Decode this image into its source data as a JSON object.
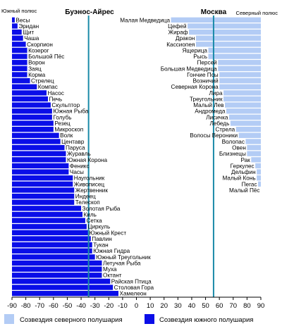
{
  "colors": {
    "north": "#b3ccf5",
    "south": "#0a0ee8",
    "ref_line": "#1a8aa8",
    "axis": "#000000",
    "text": "#000000"
  },
  "labels": {
    "south_pole": "Южный полюс",
    "north_pole": "Северный полюс",
    "buenos_aires": "Буэнос-Айрес",
    "moscow": "Москва"
  },
  "legend": {
    "north": "Созвездия северного полушария",
    "south": "Созвездия южного полушария"
  },
  "chart_data": {
    "type": "bar",
    "orientation": "horizontal",
    "x_ticks": [
      -90,
      -80,
      -70,
      -60,
      -50,
      -40,
      -30,
      -20,
      -10,
      0,
      10,
      20,
      30,
      40,
      50,
      60,
      70,
      80,
      90
    ],
    "xlim": [
      -90,
      90
    ],
    "reference_lines": [
      {
        "label": "Буэнос-Айрес",
        "x": -34.6
      },
      {
        "label": "Москва",
        "x": 55.8
      }
    ],
    "south_bars": [
      {
        "name": "Весы",
        "value": -88
      },
      {
        "name": "Эридан",
        "value": -86
      },
      {
        "name": "Щит",
        "value": -83
      },
      {
        "name": "Чаша",
        "value": -82
      },
      {
        "name": "Скорпион",
        "value": -80
      },
      {
        "name": "Козерог",
        "value": -79
      },
      {
        "name": "Большой Пёс",
        "value": -79
      },
      {
        "name": "Ворон",
        "value": -79
      },
      {
        "name": "Заяц",
        "value": -79
      },
      {
        "name": "Корма",
        "value": -79
      },
      {
        "name": "Стрелец",
        "value": -77
      },
      {
        "name": "Компас",
        "value": -72
      },
      {
        "name": "Насос",
        "value": -65
      },
      {
        "name": "Печь",
        "value": -64
      },
      {
        "name": "Скульптор",
        "value": -62
      },
      {
        "name": "Южная Рыба",
        "value": -61
      },
      {
        "name": "Голубь",
        "value": -61
      },
      {
        "name": "Резец",
        "value": -60
      },
      {
        "name": "Микроскоп",
        "value": -60
      },
      {
        "name": "Волк",
        "value": -56
      },
      {
        "name": "Центавр",
        "value": -55
      },
      {
        "name": "Паруса",
        "value": -52
      },
      {
        "name": "Журавль",
        "value": -51
      },
      {
        "name": "Южная Корона",
        "value": -51
      },
      {
        "name": "Феникс",
        "value": -49
      },
      {
        "name": "Часы",
        "value": -49
      },
      {
        "name": "Наугольник",
        "value": -46
      },
      {
        "name": "Живописец",
        "value": -46
      },
      {
        "name": "Жертвенник",
        "value": -45
      },
      {
        "name": "Индеец",
        "value": -45
      },
      {
        "name": "Телескоп",
        "value": -45
      },
      {
        "name": "Золотая Рыба",
        "value": -40
      },
      {
        "name": "Киль",
        "value": -39
      },
      {
        "name": "Сетка",
        "value": -37
      },
      {
        "name": "Циркуль",
        "value": -36
      },
      {
        "name": "Южный Крест",
        "value": -35
      },
      {
        "name": "Павлин",
        "value": -33
      },
      {
        "name": "Тукан",
        "value": -32
      },
      {
        "name": "Южная Гидра",
        "value": -32
      },
      {
        "name": "Южный Треугольник",
        "value": -30
      },
      {
        "name": "Летучая Рыба",
        "value": -25
      },
      {
        "name": "Муха",
        "value": -25
      },
      {
        "name": "Октант",
        "value": -25
      },
      {
        "name": "Райская Птица",
        "value": -19
      },
      {
        "name": "Столовая Гора",
        "value": -17
      },
      {
        "name": "Хамелеон",
        "value": -13
      }
    ],
    "north_bars": [
      {
        "name": "Малая Медведица",
        "value": 25
      },
      {
        "name": "Цефей",
        "value": 37
      },
      {
        "name": "Жираф",
        "value": 38
      },
      {
        "name": "Дракон",
        "value": 43
      },
      {
        "name": "Кассиопея",
        "value": 43
      },
      {
        "name": "Ящерица",
        "value": 52
      },
      {
        "name": "Рысь",
        "value": 52
      },
      {
        "name": "Персей",
        "value": 59
      },
      {
        "name": "Большая Медведица",
        "value": 59
      },
      {
        "name": "Гончие Псы",
        "value": 60
      },
      {
        "name": "Возничий",
        "value": 60
      },
      {
        "name": "Северная Корона",
        "value": 60
      },
      {
        "name": "Лира",
        "value": 63
      },
      {
        "name": "Треугольник",
        "value": 63
      },
      {
        "name": "Малый Лев",
        "value": 64
      },
      {
        "name": "Андромеда",
        "value": 65
      },
      {
        "name": "Лисичка",
        "value": 67
      },
      {
        "name": "Лебедь",
        "value": 68
      },
      {
        "name": "Стрела",
        "value": 72
      },
      {
        "name": "Волосы Вероники",
        "value": 74
      },
      {
        "name": "Волопас",
        "value": 79
      },
      {
        "name": "Овен",
        "value": 80
      },
      {
        "name": "Близнецы",
        "value": 80
      },
      {
        "name": "Рак",
        "value": 83
      },
      {
        "name": "Геркулес",
        "value": 86
      },
      {
        "name": "Дельфин",
        "value": 87
      },
      {
        "name": "Малый Конь",
        "value": 87
      },
      {
        "name": "Пегас",
        "value": 88
      },
      {
        "name": "Малый Пёс",
        "value": 90
      }
    ]
  }
}
